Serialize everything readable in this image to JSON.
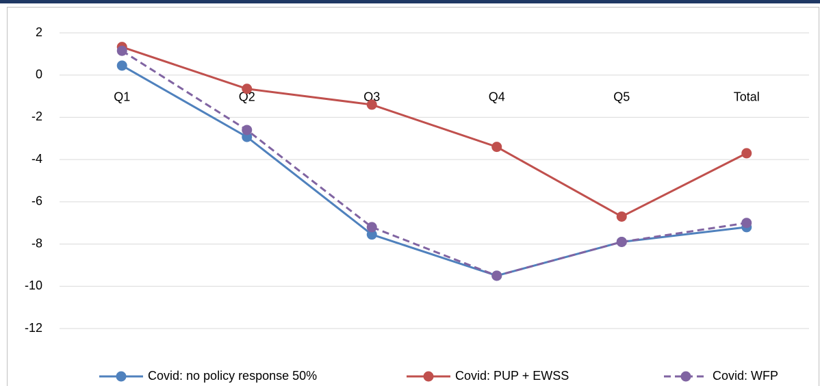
{
  "chart_data": {
    "type": "line",
    "categories": [
      "Q1",
      "Q2",
      "Q3",
      "Q4",
      "Q5",
      "Total"
    ],
    "series": [
      {
        "name": "Covid: no policy response 50%",
        "color": "#4f81bd",
        "values": [
          0.45,
          -2.93,
          -7.55,
          -9.5,
          -7.9,
          -7.2
        ]
      },
      {
        "name": "Covid: PUP + EWSS",
        "color": "#c0504d",
        "values": [
          1.33,
          -0.65,
          -1.4,
          -3.4,
          -6.7,
          -3.7
        ]
      },
      {
        "name": "Covid: WFP",
        "color": "#8064a2",
        "dashed": true,
        "values": [
          1.15,
          -2.6,
          -7.2,
          -9.5,
          -7.9,
          -7.0
        ]
      }
    ],
    "ylim": [
      -12,
      2
    ],
    "yticks": [
      2,
      0,
      -2,
      -4,
      -6,
      -8,
      -10,
      -12
    ],
    "grid": true,
    "legend": "bottom"
  }
}
